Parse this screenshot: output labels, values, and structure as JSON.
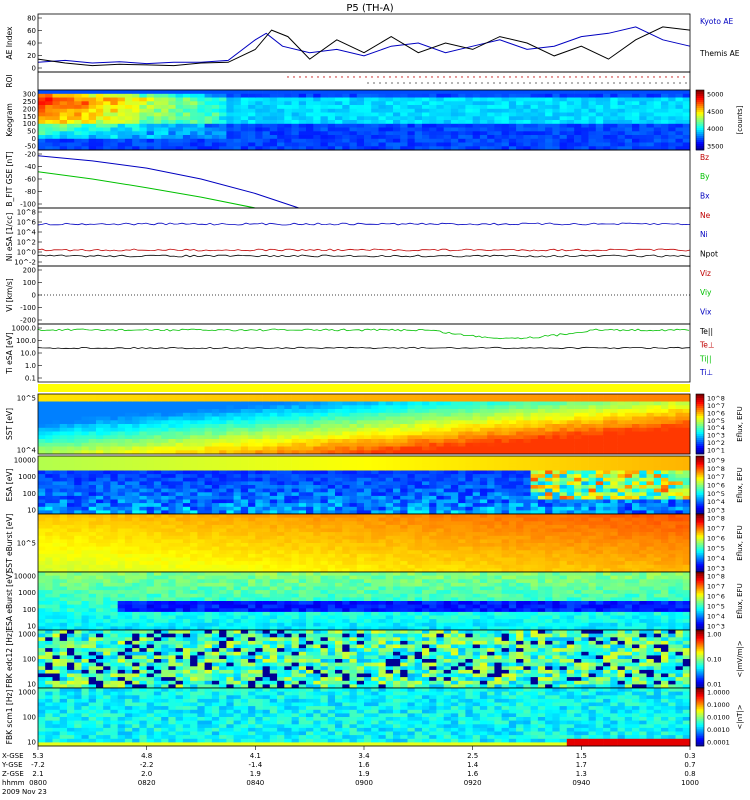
{
  "title": "P5 (TH-A)",
  "ephem": {
    "rows": [
      {
        "label": "X-GSE",
        "values": [
          "5.3",
          "4.8",
          "4.1",
          "3.4",
          "2.5",
          "1.5",
          "0.3"
        ]
      },
      {
        "label": "Y-GSE",
        "values": [
          "-7.2",
          "-2.2",
          "-1.4",
          "1.6",
          "1.4",
          "1.7",
          "0.7"
        ]
      },
      {
        "label": "Z-GSE",
        "values": [
          "2.1",
          "2.0",
          "1.9",
          "1.9",
          "1.6",
          "1.3",
          "0.8"
        ]
      },
      {
        "label": "hhmm",
        "values": [
          "0800",
          "0820",
          "0840",
          "0900",
          "0920",
          "0940",
          "1000"
        ]
      }
    ],
    "date": "2009 Nov 23"
  },
  "chart_data": [
    {
      "type": "line",
      "ylabel": "AE Index",
      "ylim": [
        -10,
        80
      ],
      "yticks": [
        "80",
        "60",
        "40",
        "20",
        "0"
      ],
      "x_range": [
        "08:00",
        "10:00"
      ],
      "series": [
        {
          "name": "Kyoto AE",
          "color": "#0000c0",
          "x_min": [
            0,
            5,
            10,
            15,
            20,
            25,
            30,
            35,
            40,
            42,
            45,
            50,
            55,
            60,
            65,
            70,
            75,
            80,
            85,
            90,
            95,
            100,
            105,
            110,
            115,
            120
          ],
          "values": [
            5,
            8,
            4,
            6,
            3,
            5,
            5,
            8,
            40,
            50,
            30,
            20,
            25,
            15,
            30,
            35,
            20,
            30,
            40,
            25,
            30,
            45,
            50,
            60,
            40,
            30
          ]
        },
        {
          "name": "Themis AE",
          "color": "#000000",
          "x_min": [
            0,
            5,
            10,
            15,
            20,
            25,
            30,
            35,
            40,
            43,
            46,
            50,
            55,
            60,
            65,
            70,
            75,
            80,
            85,
            90,
            95,
            100,
            105,
            110,
            115,
            120
          ],
          "values": [
            10,
            4,
            0,
            2,
            1,
            0,
            4,
            5,
            25,
            55,
            45,
            10,
            40,
            20,
            45,
            20,
            35,
            25,
            45,
            35,
            15,
            30,
            10,
            40,
            60,
            55
          ]
        }
      ]
    },
    {
      "type": "heatmap",
      "ylabel": "ROI",
      "ylim": [
        0,
        1
      ],
      "yticks": [],
      "x_range": [
        "08:00",
        "10:00"
      ]
    },
    {
      "type": "heatmap",
      "ylabel": "Keogram",
      "ylim": [
        -50,
        300
      ],
      "yticks": [
        "300",
        "250",
        "200",
        "150",
        "100",
        "50",
        "0",
        "-50"
      ],
      "colorbar": {
        "label": "[counts]",
        "ticks": [
          "5000",
          "4500",
          "4000",
          "3500"
        ],
        "range": [
          3500,
          5200
        ]
      },
      "x_range": [
        "08:00",
        "10:00"
      ]
    },
    {
      "type": "line",
      "ylabel": "B_FIT GSE [nT]",
      "ylim": [
        -100,
        -20
      ],
      "yticks": [
        "-20",
        "-40",
        "-60",
        "-80",
        "-100"
      ],
      "x_range": [
        "08:00",
        "10:00"
      ],
      "series": [
        {
          "name": "Bz",
          "color": "#c00000",
          "x_min": [],
          "values": []
        },
        {
          "name": "By",
          "color": "#00c000",
          "x_min": [
            0,
            10,
            20,
            30,
            40
          ],
          "values": [
            -50,
            -60,
            -72,
            -85,
            -100
          ]
        },
        {
          "name": "Bx",
          "color": "#0000c0",
          "x_min": [
            0,
            10,
            20,
            30,
            40,
            48
          ],
          "values": [
            -28,
            -35,
            -45,
            -60,
            -80,
            -100
          ]
        }
      ]
    },
    {
      "type": "line",
      "ylabel": "Ni eSA [1/cc]",
      "ylim": [
        "1e-2",
        "1e8"
      ],
      "yticks": [
        "10^8",
        "10^6",
        "10^4",
        "10^2",
        "10^0",
        "10^-2"
      ],
      "log_scale": true,
      "x_range": [
        "08:00",
        "10:00"
      ],
      "series": [
        {
          "name": "Ne",
          "color": "#c00000",
          "value_level": "~1e0"
        },
        {
          "name": "Ni",
          "color": "#0000c0",
          "value_level": "~1e4"
        },
        {
          "name": "Npot",
          "color": "#000000",
          "value_level": "~1e-1"
        }
      ]
    },
    {
      "type": "line",
      "ylabel": "Vi [km/s]",
      "ylim": [
        -250,
        250
      ],
      "yticks": [
        "200",
        "100",
        "0",
        "-100",
        "-200"
      ],
      "x_range": [
        "08:00",
        "10:00"
      ],
      "series": [
        {
          "name": "Viz",
          "color": "#c00000"
        },
        {
          "name": "Viy",
          "color": "#00c000"
        },
        {
          "name": "Vix",
          "color": "#0000c0"
        }
      ]
    },
    {
      "type": "line",
      "ylabel": "Ti eSA [eV]",
      "ylim": [
        0.05,
        10000
      ],
      "yticks": [
        "1000.0",
        "100.0",
        "10.0",
        "1.0",
        "0.1"
      ],
      "log_scale": true,
      "x_range": [
        "08:00",
        "10:00"
      ],
      "series": [
        {
          "name": "Te||",
          "color": "#000000"
        },
        {
          "name": "Te⊥",
          "color": "#c00000"
        },
        {
          "name": "Ti||",
          "color": "#00c000"
        },
        {
          "name": "Ti⊥",
          "color": "#0000c0"
        }
      ]
    },
    {
      "type": "heatmap",
      "ylabel": "SST [eV]",
      "yticks": [
        "10^5",
        "10^4"
      ],
      "colorbar": {
        "label": "Eflux, EFU",
        "ticks": [
          "10^8",
          "10^7",
          "10^6",
          "10^5",
          "10^4",
          "10^3",
          "10^2",
          "10^1"
        ]
      },
      "x_range": [
        "08:00",
        "10:00"
      ]
    },
    {
      "type": "heatmap",
      "ylabel": "ESA [eV]",
      "yticks": [
        "10000",
        "1000",
        "100",
        "10"
      ],
      "colorbar": {
        "label": "Eflux, EFU",
        "ticks": [
          "10^9",
          "10^8",
          "10^7",
          "10^6",
          "10^5",
          "10^4",
          "10^3"
        ]
      },
      "x_range": [
        "08:00",
        "10:00"
      ]
    },
    {
      "type": "heatmap",
      "ylabel": "SST eBurst [eV]",
      "yticks": [
        "10^5"
      ],
      "colorbar": {
        "label": "Eflux, EFU",
        "ticks": [
          "10^8",
          "10^7",
          "10^6",
          "10^5",
          "10^4",
          "10^3"
        ]
      },
      "x_range": [
        "08:00",
        "10:00"
      ]
    },
    {
      "type": "heatmap",
      "ylabel": "ESA eBurst [eV]",
      "yticks": [
        "10000",
        "1000",
        "100",
        "10"
      ],
      "colorbar": {
        "label": "Eflux, EFU",
        "ticks": [
          "10^8",
          "10^7",
          "10^6",
          "10^5",
          "10^4",
          "10^3"
        ]
      },
      "x_range": [
        "08:00",
        "10:00"
      ]
    },
    {
      "type": "heatmap",
      "ylabel": "FBK edc12 [Hz]",
      "yticks": [
        "1000",
        "100",
        "10"
      ],
      "colorbar": {
        "label": "<|mV/m|>",
        "ticks": [
          "1.00",
          "0.10",
          "0.01"
        ]
      },
      "x_range": [
        "08:00",
        "10:00"
      ]
    },
    {
      "type": "heatmap",
      "ylabel": "FBK scm1 [Hz]",
      "yticks": [
        "1000",
        "100",
        "10"
      ],
      "colorbar": {
        "label": "<|nT|>",
        "ticks": [
          "1.0000",
          "0.1000",
          "0.0100",
          "0.0010",
          "0.0001"
        ]
      },
      "x_range": [
        "08:00",
        "10:00"
      ]
    }
  ]
}
